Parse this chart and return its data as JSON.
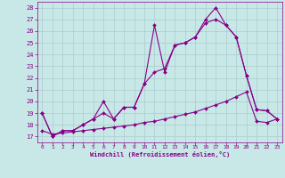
{
  "background_color": "#c8e8e8",
  "line_color": "#880088",
  "grid_color": "#aacccc",
  "xlabel": "Windchill (Refroidissement éolien,°C)",
  "xlim": [
    -0.5,
    23.5
  ],
  "ylim": [
    16.5,
    28.5
  ],
  "yticks": [
    17,
    18,
    19,
    20,
    21,
    22,
    23,
    24,
    25,
    26,
    27,
    28
  ],
  "xticks": [
    0,
    1,
    2,
    3,
    4,
    5,
    6,
    7,
    8,
    9,
    10,
    11,
    12,
    13,
    14,
    15,
    16,
    17,
    18,
    19,
    20,
    21,
    22,
    23
  ],
  "line1_x": [
    0,
    1,
    2,
    3,
    4,
    5,
    6,
    7,
    8,
    9,
    10,
    11,
    12,
    13,
    14,
    15,
    16,
    17,
    18,
    19,
    20,
    21,
    22,
    23
  ],
  "line1_y": [
    19,
    17,
    17.5,
    17.5,
    18,
    18.5,
    20,
    18.5,
    19.5,
    19.5,
    21.5,
    26.5,
    22.5,
    24.8,
    25.0,
    25.5,
    27.0,
    28.0,
    26.5,
    25.5,
    22.2,
    19.3,
    19.2,
    18.5
  ],
  "line2_x": [
    0,
    1,
    2,
    3,
    4,
    5,
    6,
    7,
    8,
    9,
    10,
    11,
    12,
    13,
    14,
    15,
    16,
    17,
    18,
    19,
    20,
    21,
    22,
    23
  ],
  "line2_y": [
    19,
    17,
    17.5,
    17.5,
    18,
    18.5,
    19,
    18.5,
    19.5,
    19.5,
    21.5,
    22.5,
    22.8,
    24.8,
    25.0,
    25.5,
    26.7,
    27.0,
    26.5,
    25.5,
    22.2,
    19.3,
    19.2,
    18.5
  ],
  "line3_x": [
    0,
    1,
    2,
    3,
    4,
    5,
    6,
    7,
    8,
    9,
    10,
    11,
    12,
    13,
    14,
    15,
    16,
    17,
    18,
    19,
    20,
    21,
    22,
    23
  ],
  "line3_y": [
    17.5,
    17.2,
    17.3,
    17.4,
    17.5,
    17.6,
    17.7,
    17.8,
    17.9,
    18.0,
    18.2,
    18.3,
    18.5,
    18.7,
    18.9,
    19.1,
    19.4,
    19.7,
    20.0,
    20.4,
    20.8,
    18.3,
    18.2,
    18.5
  ]
}
